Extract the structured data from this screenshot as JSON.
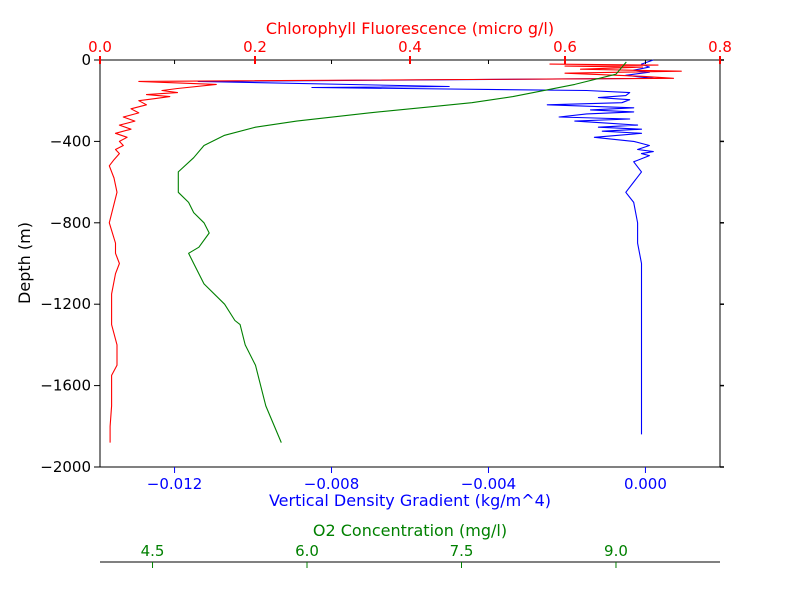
{
  "chart_data": {
    "type": "line",
    "colors": {
      "density": "#0000ff",
      "chlorophyll": "#ff0000",
      "oxygen": "#008000",
      "axis": "#000000"
    },
    "y_axis": {
      "label": "Depth (m)",
      "lim": [
        -2000,
        0
      ],
      "ticks": [
        0,
        -400,
        -800,
        -1200,
        -1600,
        -2000
      ],
      "tick_labels": [
        "0",
        "−400",
        "−800",
        "−1200",
        "−1600",
        "−2000"
      ]
    },
    "x_axes": {
      "density": {
        "label": "Vertical Density Gradient (kg/m^4)",
        "lim": [
          -0.0139,
          0.0019
        ],
        "ticks": [
          -0.012,
          -0.008,
          -0.004,
          0.0
        ],
        "tick_labels": [
          "−0.012",
          "−0.008",
          "−0.004",
          "0.000"
        ],
        "position": "bottom"
      },
      "chlorophyll": {
        "label": "Chlorophyll Fluorescence (micro g/l)",
        "lim": [
          0.0,
          0.8
        ],
        "ticks": [
          0.0,
          0.2,
          0.4,
          0.6,
          0.8
        ],
        "tick_labels": [
          "0.0",
          "0.2",
          "0.4",
          "0.6",
          "0.8"
        ],
        "position": "top"
      },
      "oxygen": {
        "label": "O2 Concentration (mg/l)",
        "lim": [
          3.99,
          10.01
        ],
        "ticks": [
          4.5,
          6.0,
          7.5,
          9.0
        ],
        "tick_labels": [
          "4.5",
          "6.0",
          "7.5",
          "9.0"
        ],
        "position": "bottom-offset"
      }
    },
    "series": [
      {
        "axis": "density",
        "x": [
          0.0002,
          -0.0001,
          0.0001,
          -0.0003,
          0.0001,
          -0.0005,
          0.0002,
          -0.0114,
          -0.005,
          -0.0085,
          -0.0015,
          -0.0004,
          -0.0005,
          -0.0012,
          -0.0004,
          -0.0006,
          -0.0025,
          -0.0003,
          -0.0014,
          -0.0003,
          -0.0015,
          -0.0022,
          -0.0004,
          -0.0018,
          -0.001,
          -0.0002,
          -0.0012,
          -0.0001,
          -0.0011,
          -0.0001,
          -0.0013,
          -0.0003,
          0.0001,
          -0.0002,
          0.0002,
          -0.0001,
          0.0001,
          -0.0003,
          -0.0001,
          -0.0005,
          -0.0003,
          -0.0002,
          -0.0002,
          -0.0001,
          -0.0001,
          -0.0001,
          -0.0001,
          -0.0001,
          -0.0001,
          -0.0001,
          -0.0001
        ],
        "y": [
          0,
          -20,
          -35,
          -50,
          -60,
          -75,
          -90,
          -105,
          -130,
          -135,
          -150,
          -160,
          -175,
          -185,
          -195,
          -210,
          -220,
          -235,
          -245,
          -255,
          -265,
          -280,
          -290,
          -300,
          -310,
          -320,
          -330,
          -340,
          -350,
          -360,
          -380,
          -400,
          -420,
          -440,
          -450,
          -460,
          -470,
          -500,
          -550,
          -650,
          -700,
          -800,
          -900,
          -1000,
          -1200,
          -1400,
          -1500,
          -1600,
          -1700,
          -1800,
          -1840
        ]
      },
      {
        "axis": "chlorophyll",
        "x": [
          0.58,
          0.72,
          0.6,
          0.7,
          0.62,
          0.75,
          0.6,
          0.7,
          0.74,
          0.05,
          0.15,
          0.1,
          0.08,
          0.1,
          0.06,
          0.09,
          0.07,
          0.05,
          0.06,
          0.04,
          0.05,
          0.03,
          0.045,
          0.025,
          0.04,
          0.02,
          0.035,
          0.025,
          0.03,
          0.02,
          0.025,
          0.018,
          0.012,
          0.018,
          0.022,
          0.012,
          0.02,
          0.02,
          0.025,
          0.02,
          0.015,
          0.015,
          0.022,
          0.022,
          0.015,
          0.015,
          0.013,
          0.013
        ],
        "y": [
          -20,
          -25,
          -30,
          -35,
          -45,
          -55,
          -65,
          -80,
          -90,
          -105,
          -120,
          -140,
          -150,
          -160,
          -170,
          -180,
          -190,
          -200,
          -220,
          -240,
          -260,
          -280,
          -300,
          -320,
          -340,
          -360,
          -380,
          -400,
          -420,
          -440,
          -460,
          -490,
          -520,
          -580,
          -650,
          -800,
          -900,
          -950,
          -1000,
          -1050,
          -1150,
          -1300,
          -1400,
          -1500,
          -1550,
          -1700,
          -1800,
          -1880
        ]
      },
      {
        "axis": "oxygen",
        "x": [
          9.1,
          9.0,
          8.6,
          8.0,
          7.6,
          7.2,
          6.6,
          5.9,
          5.5,
          5.2,
          5.0,
          4.9,
          4.75,
          4.75,
          4.85,
          4.9,
          5.0,
          5.05,
          4.95,
          4.85,
          4.9,
          5.0,
          5.2,
          5.3,
          5.35,
          5.4,
          5.5,
          5.6,
          5.75
        ],
        "y": [
          -10,
          -70,
          -120,
          -180,
          -210,
          -230,
          -260,
          -300,
          -330,
          -370,
          -420,
          -480,
          -550,
          -650,
          -700,
          -750,
          -800,
          -850,
          -920,
          -950,
          -1000,
          -1100,
          -1200,
          -1280,
          -1300,
          -1400,
          -1500,
          -1700,
          -1880
        ]
      }
    ]
  }
}
